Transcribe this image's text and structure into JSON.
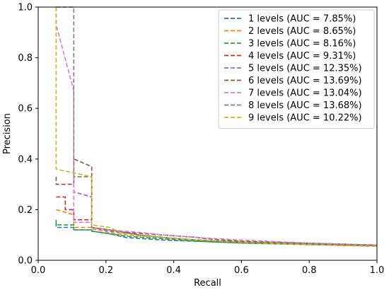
{
  "chart_data": {
    "type": "line",
    "xlabel": "Recall",
    "ylabel": "Precision",
    "xlim": [
      0.0,
      1.0
    ],
    "ylim": [
      0.0,
      1.0
    ],
    "xticks": [
      "0.0",
      "0.2",
      "0.4",
      "0.6",
      "0.8",
      "1.0"
    ],
    "yticks": [
      "0.0",
      "0.2",
      "0.4",
      "0.6",
      "0.8",
      "1.0"
    ],
    "grid": false,
    "legend_position": "top-right",
    "line_style": "dashed",
    "series": [
      {
        "name": "1 levels (AUC = 7.85%)",
        "color": "#1f77b4",
        "x": [
          0.053,
          0.053,
          0.105,
          0.105,
          0.158,
          0.158,
          0.21,
          0.26,
          0.37,
          0.47,
          0.6,
          0.8,
          1.0
        ],
        "y": [
          0.15,
          0.13,
          0.13,
          0.12,
          0.12,
          0.115,
          0.105,
          0.09,
          0.08,
          0.075,
          0.068,
          0.063,
          0.058
        ]
      },
      {
        "name": "2 levels (AUC = 8.65%)",
        "color": "#ff7f0e",
        "x": [
          0.053,
          0.053,
          0.105,
          0.105,
          0.158,
          0.158,
          0.21,
          0.26,
          0.37,
          0.47,
          0.6,
          0.8,
          1.0
        ],
        "y": [
          0.2,
          0.2,
          0.18,
          0.13,
          0.13,
          0.125,
          0.11,
          0.1,
          0.09,
          0.08,
          0.07,
          0.062,
          0.055
        ]
      },
      {
        "name": "3 levels (AUC = 8.16%)",
        "color": "#2ca02c",
        "x": [
          0.053,
          0.053,
          0.105,
          0.105,
          0.158,
          0.158,
          0.21,
          0.26,
          0.37,
          0.47,
          0.6,
          0.8,
          1.0
        ],
        "y": [
          0.16,
          0.14,
          0.14,
          0.12,
          0.12,
          0.115,
          0.105,
          0.095,
          0.085,
          0.075,
          0.068,
          0.062,
          0.057
        ]
      },
      {
        "name": "4 levels (AUC = 9.31%)",
        "color": "#d62728",
        "x": [
          0.053,
          0.053,
          0.08,
          0.08,
          0.105,
          0.105,
          0.158,
          0.158,
          0.21,
          0.3,
          0.37,
          0.47,
          0.6,
          0.8,
          1.0
        ],
        "y": [
          0.25,
          0.25,
          0.25,
          0.2,
          0.2,
          0.16,
          0.16,
          0.13,
          0.12,
          0.1,
          0.09,
          0.08,
          0.072,
          0.065,
          0.058
        ]
      },
      {
        "name": "5 levels (AUC = 12.35%)",
        "color": "#9467bd",
        "x": [
          0.105,
          0.105,
          0.158,
          0.158,
          0.21,
          0.3,
          0.37,
          0.47,
          0.6,
          0.8,
          1.0
        ],
        "y": [
          0.33,
          0.27,
          0.25,
          0.13,
          0.115,
          0.1,
          0.09,
          0.08,
          0.072,
          0.065,
          0.06
        ]
      },
      {
        "name": "6 levels (AUC = 13.69%)",
        "color": "#8c564b",
        "x": [
          0.053,
          0.053,
          0.105,
          0.105,
          0.158,
          0.158,
          0.21,
          0.26,
          0.37,
          0.47,
          0.5,
          0.6,
          0.8,
          1.0
        ],
        "y": [
          0.33,
          0.3,
          0.3,
          0.4,
          0.37,
          0.13,
          0.12,
          0.11,
          0.1,
          0.09,
          0.085,
          0.075,
          0.068,
          0.06
        ]
      },
      {
        "name": "7 levels (AUC = 13.04%)",
        "color": "#e377c2",
        "x": [
          0.053,
          0.053,
          0.105,
          0.105,
          0.158,
          0.158,
          0.21,
          0.3,
          0.37,
          0.47,
          0.6,
          0.8,
          1.0
        ],
        "y": [
          1.0,
          0.93,
          0.67,
          0.15,
          0.15,
          0.13,
          0.12,
          0.11,
          0.1,
          0.09,
          0.08,
          0.068,
          0.06
        ]
      },
      {
        "name": "8 levels (AUC = 13.68%)",
        "color": "#7f7f7f",
        "x": [
          0.053,
          0.105,
          0.105,
          0.158,
          0.158,
          0.21,
          0.3,
          0.37,
          0.47,
          0.6,
          0.8,
          1.0
        ],
        "y": [
          1.0,
          1.0,
          0.33,
          0.33,
          0.13,
          0.12,
          0.1,
          0.09,
          0.08,
          0.072,
          0.065,
          0.058
        ]
      },
      {
        "name": "9 levels (AUC = 10.22%)",
        "color": "#bcbd22",
        "x": [
          0.053,
          0.053,
          0.158,
          0.158,
          0.21,
          0.26,
          0.37,
          0.47,
          0.6,
          0.8,
          1.0
        ],
        "y": [
          1.0,
          0.36,
          0.33,
          0.14,
          0.13,
          0.1,
          0.09,
          0.08,
          0.07,
          0.062,
          0.055
        ]
      }
    ]
  }
}
